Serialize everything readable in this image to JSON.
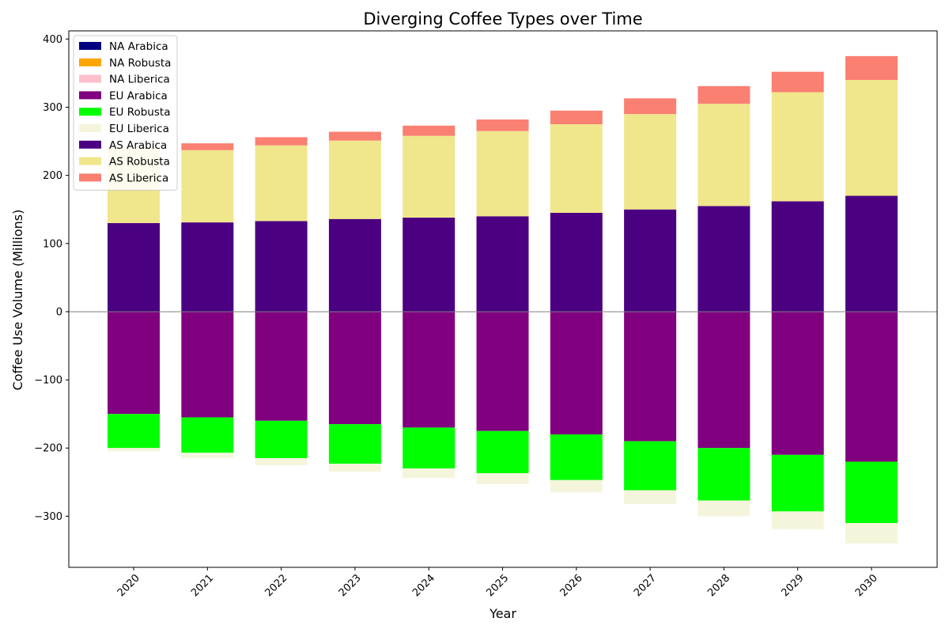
{
  "chart_data": {
    "type": "bar",
    "title": "Diverging Coffee Types over Time",
    "xlabel": "Year",
    "ylabel": "Coffee Use Volume (Millions)",
    "ylim": [
      -375,
      412
    ],
    "yticks": [
      -300,
      -200,
      -100,
      0,
      100,
      200,
      300,
      400
    ],
    "ytick_labels": [
      "−300",
      "−200",
      "−100",
      "0",
      "100",
      "200",
      "300",
      "400"
    ],
    "categories": [
      "2020",
      "2021",
      "2022",
      "2023",
      "2024",
      "2025",
      "2026",
      "2027",
      "2028",
      "2029",
      "2030"
    ],
    "legend_position": "top-left",
    "series": [
      {
        "name": "NA Arabica",
        "color": "#000080",
        "values": [
          0,
          0,
          0,
          0,
          0,
          0,
          0,
          0,
          0,
          0,
          0
        ]
      },
      {
        "name": "NA Robusta",
        "color": "#ffa500",
        "values": [
          0,
          0,
          0,
          0,
          0,
          0,
          0,
          0,
          0,
          0,
          0
        ]
      },
      {
        "name": "NA Liberica",
        "color": "#ffc0cb",
        "values": [
          0,
          0,
          0,
          0,
          0,
          0,
          0,
          0,
          0,
          0,
          0
        ]
      },
      {
        "name": "EU Arabica",
        "color": "#800080",
        "values": [
          -150,
          -155,
          -160,
          -165,
          -170,
          -175,
          -180,
          -190,
          -200,
          -210,
          -220
        ]
      },
      {
        "name": "EU Robusta",
        "color": "#00ff00",
        "values": [
          -50,
          -52,
          -55,
          -58,
          -60,
          -62,
          -67,
          -72,
          -77,
          -83,
          -90
        ]
      },
      {
        "name": "EU Liberica",
        "color": "#f5f5dc",
        "values": [
          -5,
          -8,
          -10,
          -12,
          -14,
          -16,
          -18,
          -20,
          -23,
          -26,
          -30
        ]
      },
      {
        "name": "AS Arabica",
        "color": "#4b0082",
        "values": [
          130,
          131,
          133,
          136,
          138,
          140,
          145,
          150,
          155,
          162,
          170
        ]
      },
      {
        "name": "AS Robusta",
        "color": "#f0e68c",
        "values": [
          110,
          106,
          111,
          115,
          120,
          125,
          130,
          140,
          150,
          160,
          170
        ]
      },
      {
        "name": "AS Liberica",
        "color": "#fa8072",
        "values": [
          0,
          10,
          12,
          13,
          15,
          17,
          20,
          23,
          26,
          30,
          35
        ]
      }
    ]
  }
}
